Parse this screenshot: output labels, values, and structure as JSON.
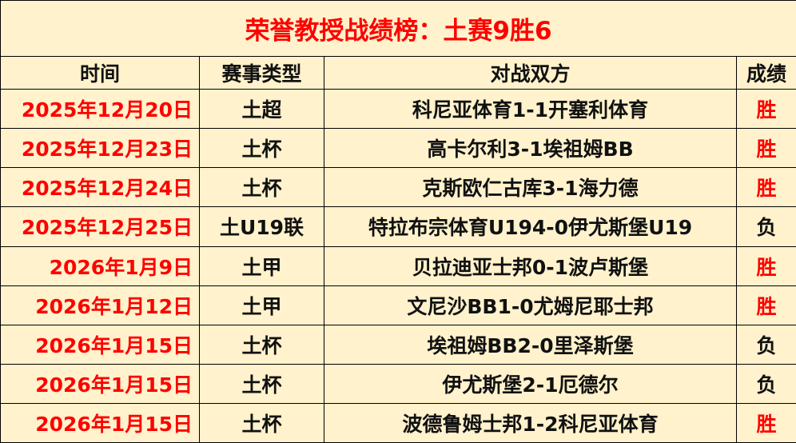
{
  "title": "荣誉教授战绩榜：土赛9胜6",
  "headers": [
    "时间",
    "赛事类型",
    "对战双方",
    "成绩"
  ],
  "colors": {
    "background": "#FFF2CC",
    "accent": "#FF0000",
    "text": "#111111"
  },
  "rows": [
    {
      "date": "2025年12月20日",
      "type": "土超",
      "match": "科尼亚体育1-1开塞利体育",
      "result": "胜"
    },
    {
      "date": "2025年12月23日",
      "type": "土杯",
      "match": "高卡尔利3-1埃祖姆BB",
      "result": "胜"
    },
    {
      "date": "2025年12月24日",
      "type": "土杯",
      "match": "克斯欧仁古库3-1海力德",
      "result": "胜"
    },
    {
      "date": "2025年12月25日",
      "type": "土U19联",
      "match": "特拉布宗体育U194-0伊尤斯堡U19",
      "result": "负"
    },
    {
      "date": "2026年1月9日",
      "type": "土甲",
      "match": "贝拉迪亚士邦0-1波卢斯堡",
      "result": "胜"
    },
    {
      "date": "2026年1月12日",
      "type": "土甲",
      "match": "文尼沙BB1-0尤姆尼耶士邦",
      "result": "胜"
    },
    {
      "date": "2026年1月15日",
      "type": "土杯",
      "match": "埃祖姆BB2-0里泽斯堡",
      "result": "负"
    },
    {
      "date": "2026年1月15日",
      "type": "土杯",
      "match": "伊尤斯堡2-1厄德尔",
      "result": "负"
    },
    {
      "date": "2026年1月15日",
      "type": "土杯",
      "match": "波德鲁姆士邦1-2科尼亚体育",
      "result": "胜"
    }
  ]
}
